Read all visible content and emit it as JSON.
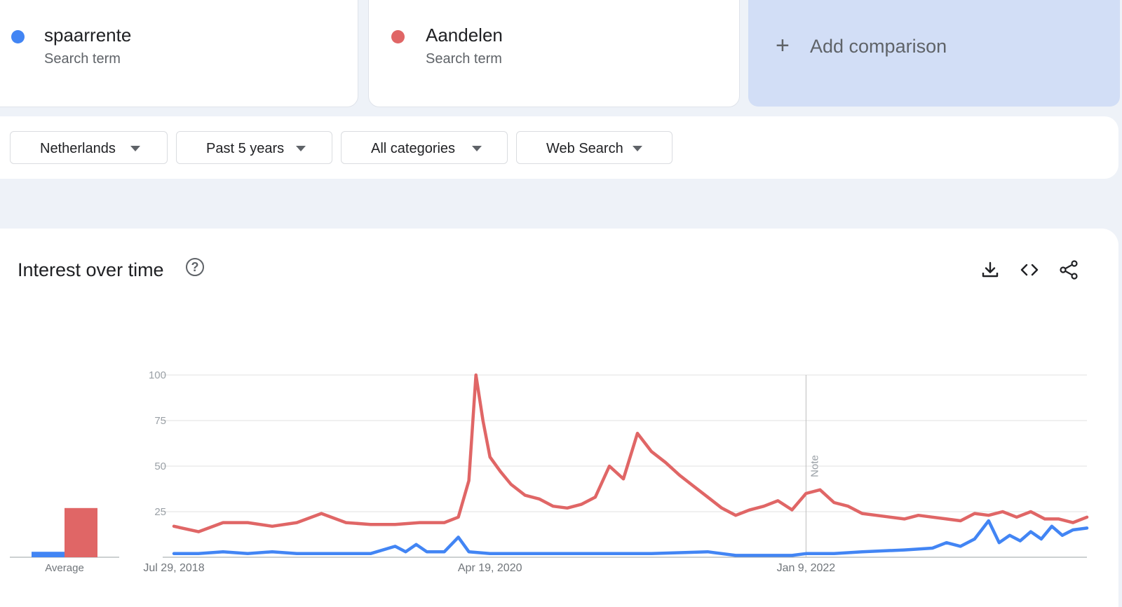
{
  "terms": [
    {
      "name": "spaarrente",
      "type": "Search term",
      "color": "#4285f4"
    },
    {
      "name": "Aandelen",
      "type": "Search term",
      "color": "#e06666"
    }
  ],
  "add_comparison": {
    "icon": "plus-icon",
    "label": "Add comparison"
  },
  "filters": [
    {
      "label": "Netherlands"
    },
    {
      "label": "Past 5 years"
    },
    {
      "label": "All categories"
    },
    {
      "label": "Web Search"
    }
  ],
  "panel": {
    "title": "Interest over time",
    "help_icon": "help-circle-icon",
    "tools": [
      "download-icon",
      "embed-code-icon",
      "share-icon"
    ]
  },
  "chart_data": [
    {
      "type": "bar",
      "categories": [
        "Average"
      ],
      "series": [
        {
          "name": "spaarrente",
          "values": [
            3
          ],
          "color": "#4285f4"
        },
        {
          "name": "Aandelen",
          "values": [
            27
          ],
          "color": "#e06666"
        }
      ],
      "xlabel": "Average",
      "ylim": [
        0,
        100
      ]
    },
    {
      "type": "line",
      "x_range": [
        "2018-07-29",
        "2023-07-23"
      ],
      "x_tick_labels": [
        "Jul 29, 2018",
        "Apr 19, 2020",
        "Jan 9, 2022"
      ],
      "x_tick_dates": [
        "2018-07-29",
        "2020-04-19",
        "2022-01-09"
      ],
      "y_ticks": [
        25,
        50,
        75,
        100
      ],
      "ylim": [
        0,
        100
      ],
      "grid": true,
      "note": {
        "label": "Note",
        "date": "2022-01-09"
      },
      "series": [
        {
          "name": "Aandelen",
          "color": "#e06666",
          "points": [
            [
              "2018-07-29",
              17
            ],
            [
              "2018-09-16",
              14
            ],
            [
              "2018-11-04",
              19
            ],
            [
              "2018-12-23",
              19
            ],
            [
              "2019-02-10",
              17
            ],
            [
              "2019-03-31",
              19
            ],
            [
              "2019-05-19",
              24
            ],
            [
              "2019-07-07",
              19
            ],
            [
              "2019-08-25",
              18
            ],
            [
              "2019-10-13",
              18
            ],
            [
              "2019-12-01",
              19
            ],
            [
              "2020-01-19",
              19
            ],
            [
              "2020-02-16",
              22
            ],
            [
              "2020-03-08",
              42
            ],
            [
              "2020-03-22",
              100
            ],
            [
              "2020-04-05",
              75
            ],
            [
              "2020-04-19",
              55
            ],
            [
              "2020-05-10",
              47
            ],
            [
              "2020-05-31",
              40
            ],
            [
              "2020-06-28",
              34
            ],
            [
              "2020-07-26",
              32
            ],
            [
              "2020-08-23",
              28
            ],
            [
              "2020-09-20",
              27
            ],
            [
              "2020-10-18",
              29
            ],
            [
              "2020-11-15",
              33
            ],
            [
              "2020-12-13",
              50
            ],
            [
              "2021-01-10",
              43
            ],
            [
              "2021-02-07",
              68
            ],
            [
              "2021-03-07",
              58
            ],
            [
              "2021-04-04",
              52
            ],
            [
              "2021-05-02",
              45
            ],
            [
              "2021-05-30",
              39
            ],
            [
              "2021-06-27",
              33
            ],
            [
              "2021-07-25",
              27
            ],
            [
              "2021-08-22",
              23
            ],
            [
              "2021-09-19",
              26
            ],
            [
              "2021-10-17",
              28
            ],
            [
              "2021-11-14",
              31
            ],
            [
              "2021-12-12",
              26
            ],
            [
              "2022-01-09",
              35
            ],
            [
              "2022-02-06",
              37
            ],
            [
              "2022-03-06",
              30
            ],
            [
              "2022-04-03",
              28
            ],
            [
              "2022-05-01",
              24
            ],
            [
              "2022-05-29",
              23
            ],
            [
              "2022-06-26",
              22
            ],
            [
              "2022-07-24",
              21
            ],
            [
              "2022-08-21",
              23
            ],
            [
              "2022-09-18",
              22
            ],
            [
              "2022-10-16",
              21
            ],
            [
              "2022-11-13",
              20
            ],
            [
              "2022-12-11",
              24
            ],
            [
              "2023-01-08",
              23
            ],
            [
              "2023-02-05",
              25
            ],
            [
              "2023-03-05",
              22
            ],
            [
              "2023-04-02",
              25
            ],
            [
              "2023-04-30",
              21
            ],
            [
              "2023-05-28",
              21
            ],
            [
              "2023-06-25",
              19
            ],
            [
              "2023-07-23",
              22
            ]
          ]
        },
        {
          "name": "spaarrente",
          "color": "#4285f4",
          "points": [
            [
              "2018-07-29",
              2
            ],
            [
              "2018-09-16",
              2
            ],
            [
              "2018-11-04",
              3
            ],
            [
              "2018-12-23",
              2
            ],
            [
              "2019-02-10",
              3
            ],
            [
              "2019-03-31",
              2
            ],
            [
              "2019-05-19",
              2
            ],
            [
              "2019-07-07",
              2
            ],
            [
              "2019-08-25",
              2
            ],
            [
              "2019-10-13",
              6
            ],
            [
              "2019-11-03",
              3
            ],
            [
              "2019-11-24",
              7
            ],
            [
              "2019-12-15",
              3
            ],
            [
              "2020-01-19",
              3
            ],
            [
              "2020-02-16",
              11
            ],
            [
              "2020-03-08",
              3
            ],
            [
              "2020-04-19",
              2
            ],
            [
              "2020-06-28",
              2
            ],
            [
              "2020-09-20",
              2
            ],
            [
              "2020-12-13",
              2
            ],
            [
              "2021-03-07",
              2
            ],
            [
              "2021-06-27",
              3
            ],
            [
              "2021-08-22",
              1
            ],
            [
              "2021-10-17",
              1
            ],
            [
              "2021-12-12",
              1
            ],
            [
              "2022-01-09",
              2
            ],
            [
              "2022-03-06",
              2
            ],
            [
              "2022-05-01",
              3
            ],
            [
              "2022-07-24",
              4
            ],
            [
              "2022-09-18",
              5
            ],
            [
              "2022-10-16",
              8
            ],
            [
              "2022-11-13",
              6
            ],
            [
              "2022-12-11",
              10
            ],
            [
              "2023-01-08",
              20
            ],
            [
              "2023-01-29",
              8
            ],
            [
              "2023-02-19",
              12
            ],
            [
              "2023-03-12",
              9
            ],
            [
              "2023-04-02",
              14
            ],
            [
              "2023-04-23",
              10
            ],
            [
              "2023-05-14",
              17
            ],
            [
              "2023-06-04",
              12
            ],
            [
              "2023-06-25",
              15
            ],
            [
              "2023-07-23",
              16
            ]
          ]
        }
      ]
    }
  ]
}
